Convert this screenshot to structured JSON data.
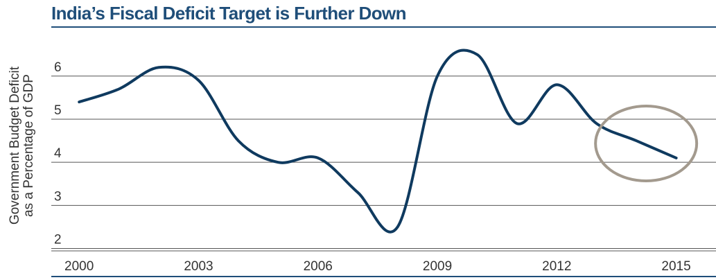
{
  "chart_data": {
    "type": "line",
    "title": "India’s Fiscal Deficit Target is Further Down",
    "xlabel": "",
    "ylabel": [
      "Government Budget Deficit",
      "as a Percentage of GDP"
    ],
    "ylim": [
      1.8,
      6.8
    ],
    "yticks": [
      2,
      3,
      4,
      5,
      6
    ],
    "xlim": [
      1999.3,
      2016.0
    ],
    "xticks": [
      2000,
      2003,
      2006,
      2009,
      2012,
      2015
    ],
    "grid": "horizontal",
    "legend": "none",
    "colors": {
      "line": "#0f3a5f",
      "title": "#1f4e79",
      "grid": "#555555",
      "highlight_circle": "#a39a8e"
    },
    "series": [
      {
        "x": [
          2000,
          2001,
          2002,
          2003,
          2004,
          2005,
          2006,
          2007,
          2008,
          2009,
          2010,
          2011,
          2012,
          2013,
          2014,
          2015
        ],
        "values": [
          5.4,
          5.7,
          6.2,
          5.9,
          4.5,
          4.0,
          4.1,
          3.3,
          2.5,
          6.0,
          6.5,
          4.9,
          5.8,
          4.9,
          4.5,
          4.1
        ]
      }
    ],
    "highlight": {
      "shape": "ellipse",
      "around_x": [
        2013,
        2015
      ]
    }
  }
}
